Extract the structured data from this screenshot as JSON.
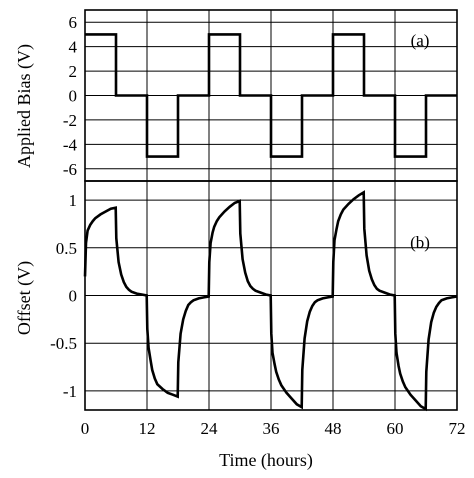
{
  "chart_data": [
    {
      "panel": "a",
      "type": "line",
      "panel_tag": "(a)",
      "xlabel": "",
      "ylabel": "Applied Bias (V)",
      "xlim": [
        0,
        72
      ],
      "ylim": [
        -7,
        7
      ],
      "x_ticks": [
        "0",
        "12",
        "24",
        "36",
        "48",
        "60",
        "72"
      ],
      "y_ticks": [
        "6",
        "4",
        "2",
        "0",
        "-2",
        "-4",
        "-6"
      ],
      "grid": true,
      "series": [
        {
          "x": [
            0,
            6,
            6,
            12,
            12,
            18,
            18,
            24,
            24,
            30,
            30,
            36,
            36,
            42,
            42,
            48,
            48,
            54,
            54,
            60,
            60,
            66,
            66,
            72
          ],
          "y": [
            5,
            5,
            0,
            0,
            -5,
            -5,
            0,
            0,
            5,
            5,
            0,
            0,
            -5,
            -5,
            0,
            0,
            5,
            5,
            0,
            0,
            -5,
            -5,
            0,
            0
          ]
        }
      ]
    },
    {
      "panel": "b",
      "type": "line",
      "panel_tag": "(b)",
      "xlabel": "Time (hours)",
      "ylabel": "Offset (V)",
      "xlim": [
        0,
        72
      ],
      "ylim": [
        -1.2,
        1.2
      ],
      "x_ticks": [
        "0",
        "12",
        "24",
        "36",
        "48",
        "60",
        "72"
      ],
      "y_ticks": [
        "1",
        "0.5",
        "0",
        "-0.5",
        "-1"
      ],
      "grid": true,
      "series": [
        {
          "x": [
            0,
            0.2,
            0.5,
            1,
            1.5,
            2,
            3,
            4,
            5,
            5.95,
            6.05,
            6.5,
            7,
            7.5,
            8,
            8.5,
            9,
            10,
            11,
            11.95,
            12.05,
            12.3,
            12.7,
            13,
            13.5,
            14,
            15,
            16,
            17,
            17.95,
            18.05,
            18.5,
            19,
            19.5,
            20,
            20.5,
            21,
            22,
            23,
            23.95,
            24.05,
            24.3,
            24.7,
            25,
            25.5,
            26,
            27,
            28,
            29,
            29.95,
            30.05,
            30.5,
            31,
            31.5,
            32,
            32.5,
            33,
            34,
            35,
            35.95,
            36.05,
            36.3,
            36.7,
            37,
            37.5,
            38,
            39,
            40,
            41,
            41.95,
            42.05,
            42.5,
            43,
            43.5,
            44,
            44.5,
            45,
            46,
            47,
            47.95,
            48.05,
            48.3,
            48.7,
            49,
            49.5,
            50,
            51,
            52,
            53,
            53.95,
            54.05,
            54.5,
            55,
            55.5,
            56,
            56.5,
            57,
            58,
            59,
            59.95,
            60.05,
            60.3,
            60.7,
            61,
            61.5,
            62,
            63,
            64,
            65,
            65.95,
            66.05,
            66.5,
            67,
            67.5,
            68,
            68.5,
            69,
            70,
            71,
            72
          ],
          "y": [
            0.2,
            0.55,
            0.68,
            0.74,
            0.78,
            0.81,
            0.85,
            0.88,
            0.91,
            0.92,
            0.6,
            0.35,
            0.22,
            0.14,
            0.09,
            0.06,
            0.04,
            0.02,
            0.01,
            0.0,
            -0.35,
            -0.55,
            -0.68,
            -0.78,
            -0.87,
            -0.93,
            -0.98,
            -1.02,
            -1.04,
            -1.06,
            -0.7,
            -0.4,
            -0.25,
            -0.16,
            -0.1,
            -0.07,
            -0.05,
            -0.03,
            -0.02,
            -0.01,
            0.35,
            0.55,
            0.66,
            0.72,
            0.78,
            0.82,
            0.88,
            0.93,
            0.97,
            0.99,
            0.65,
            0.38,
            0.24,
            0.15,
            0.1,
            0.07,
            0.05,
            0.03,
            0.01,
            0.0,
            -0.4,
            -0.6,
            -0.72,
            -0.8,
            -0.88,
            -0.94,
            -1.02,
            -1.08,
            -1.14,
            -1.17,
            -0.78,
            -0.45,
            -0.27,
            -0.17,
            -0.11,
            -0.07,
            -0.05,
            -0.03,
            -0.02,
            -0.01,
            0.35,
            0.58,
            0.7,
            0.78,
            0.85,
            0.9,
            0.96,
            1.01,
            1.05,
            1.08,
            0.7,
            0.42,
            0.26,
            0.17,
            0.11,
            0.07,
            0.05,
            0.03,
            0.01,
            0.0,
            -0.4,
            -0.6,
            -0.74,
            -0.82,
            -0.9,
            -0.96,
            -1.04,
            -1.1,
            -1.16,
            -1.19,
            -0.8,
            -0.46,
            -0.28,
            -0.18,
            -0.12,
            -0.08,
            -0.05,
            -0.03,
            -0.02,
            -0.01
          ]
        }
      ]
    }
  ]
}
